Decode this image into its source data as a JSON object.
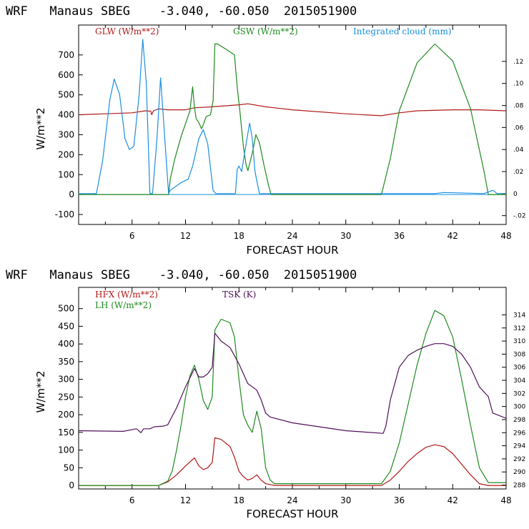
{
  "chart_data": [
    {
      "type": "line",
      "title": "WRF   Manaus SBEG    -3.040, -60.050  2015051900",
      "xlabel": "FORECAST HOUR",
      "ylabel": "W/m**2",
      "xlim": [
        0,
        48
      ],
      "ylim": [
        -150,
        850
      ],
      "xticks": [
        6,
        12,
        18,
        24,
        30,
        36,
        42,
        48
      ],
      "yticks": [
        -100,
        0,
        100,
        200,
        300,
        400,
        500,
        600,
        700
      ],
      "y2lim": [
        -0.028,
        0.153
      ],
      "y2ticks": [
        -0.02,
        0,
        0.02,
        0.04,
        0.06,
        0.08,
        0.1,
        0.12
      ],
      "y2ticklabels": [
        "-.02",
        "0",
        ".02",
        ".04",
        ".06",
        ".08",
        ".10",
        ".12"
      ],
      "series": [
        {
          "name": "GLW (W/m**2)",
          "color": "#b01818",
          "axis": "left",
          "x": [
            0,
            3,
            6,
            7.5,
            8.1,
            8.2,
            8.4,
            9,
            10,
            12,
            13,
            15,
            16.5,
            18,
            19,
            21,
            24,
            30,
            34,
            36,
            38,
            42,
            45,
            48
          ],
          "y": [
            400,
            405,
            410,
            420,
            418,
            400,
            420,
            430,
            425,
            425,
            435,
            440,
            445,
            450,
            455,
            440,
            425,
            405,
            395,
            410,
            420,
            425,
            425,
            420
          ]
        },
        {
          "name": "GSW (W/m**2)",
          "color": "#1f8a1f",
          "axis": "left",
          "x": [
            0,
            10.1,
            10.3,
            10.8,
            11.5,
            12.5,
            12.8,
            13.0,
            13.2,
            13.5,
            13.8,
            14.0,
            14.3,
            14.8,
            15.1,
            15.3,
            15.6,
            16.5,
            17.5,
            17.8,
            18.1,
            18.5,
            18.8,
            19.0,
            19.3,
            19.6,
            19.9,
            20.3,
            20.8,
            21.3,
            21.6,
            22,
            34.0,
            35,
            36,
            38,
            40,
            42,
            44,
            45.5,
            46,
            48
          ],
          "y": [
            0,
            0,
            80,
            180,
            290,
            420,
            540,
            440,
            380,
            360,
            330,
            350,
            390,
            400,
            470,
            755,
            755,
            730,
            700,
            540,
            420,
            240,
            150,
            120,
            170,
            230,
            300,
            260,
            150,
            50,
            0,
            0,
            0,
            180,
            420,
            660,
            755,
            670,
            430,
            120,
            0,
            0
          ]
        },
        {
          "name": "Integrated cloud (mm)",
          "color": "#1a8fe0",
          "axis": "right",
          "x": [
            0,
            2,
            2.7,
            3.5,
            4,
            4.6,
            5.2,
            5.7,
            6.2,
            6.8,
            7.2,
            7.6,
            8,
            8.3,
            8.8,
            9.2,
            9.5,
            9.8,
            10.1,
            10.3,
            11.5,
            12.3,
            12.8,
            13.5,
            14,
            14.5,
            15.1,
            15.4,
            17.6,
            17.8,
            18.0,
            18.3,
            18.6,
            18.9,
            19.2,
            19.5,
            19.8,
            20.1,
            20.3,
            40,
            41,
            45.5,
            46.5,
            47,
            48
          ],
          "y": [
            0,
            0,
            0.03,
            0.085,
            0.104,
            0.09,
            0.05,
            0.04,
            0.043,
            0.09,
            0.14,
            0.1,
            0,
            0,
            0.05,
            0.105,
            0.07,
            0.035,
            0,
            0.003,
            0.01,
            0.013,
            0.025,
            0.05,
            0.058,
            0.045,
            0.003,
            0,
            0,
            0.022,
            0.025,
            0.02,
            0.035,
            0.05,
            0.064,
            0.05,
            0.02,
            0.008,
            0,
            0,
            0.001,
            0,
            0.003,
            0,
            0
          ]
        }
      ]
    },
    {
      "type": "line",
      "title": "WRF   Manaus SBEG    -3.040, -60.050  2015051900",
      "xlabel": "FORECAST HOUR",
      "ylabel": "W/m**2",
      "xlim": [
        0,
        48
      ],
      "ylim": [
        -10,
        560
      ],
      "xticks": [
        6,
        12,
        18,
        24,
        30,
        36,
        42,
        48
      ],
      "yticks": [
        0,
        50,
        100,
        150,
        200,
        250,
        300,
        350,
        400,
        450,
        500
      ],
      "y2lim": [
        287.4,
        318.2
      ],
      "y2ticks": [
        288,
        290,
        292,
        294,
        296,
        298,
        300,
        302,
        304,
        306,
        308,
        310,
        312,
        314
      ],
      "y2ticklabels": [
        "288",
        "290",
        "292",
        "294",
        "296",
        "298",
        "300",
        "302",
        "304",
        "306",
        "308",
        "310",
        "312",
        "314"
      ],
      "series": [
        {
          "name": "HFX (W/m**2)",
          "color": "#b01818",
          "axis": "left",
          "x": [
            0,
            9,
            10,
            11,
            12,
            13,
            13.5,
            14,
            14.5,
            15,
            15.3,
            16,
            17,
            17.5,
            18,
            18.5,
            19,
            19.5,
            20,
            20.5,
            21,
            22,
            34,
            35,
            36,
            37,
            38,
            39,
            40,
            41,
            42,
            43,
            44,
            45,
            46,
            48
          ],
          "y": [
            0,
            0,
            10,
            30,
            55,
            78,
            55,
            45,
            50,
            65,
            135,
            130,
            110,
            80,
            40,
            25,
            15,
            20,
            30,
            15,
            5,
            0,
            0,
            15,
            40,
            68,
            90,
            108,
            115,
            110,
            90,
            60,
            30,
            5,
            0,
            0
          ]
        },
        {
          "name": "LH (W/m**2)",
          "color": "#1f8a1f",
          "axis": "left",
          "x": [
            0,
            9,
            10,
            10.5,
            11,
            11.5,
            12,
            12.5,
            13,
            13.5,
            14,
            14.5,
            15,
            15.3,
            16,
            17,
            17.5,
            18,
            18.5,
            19,
            19.5,
            20,
            20.5,
            21,
            21.5,
            22,
            34,
            35,
            36,
            37,
            38,
            39,
            40,
            41,
            42,
            43,
            44,
            45,
            46,
            48
          ],
          "y": [
            0,
            0,
            12,
            40,
            100,
            170,
            250,
            310,
            340,
            300,
            240,
            215,
            250,
            440,
            470,
            460,
            420,
            300,
            200,
            170,
            150,
            210,
            160,
            50,
            15,
            5,
            5,
            40,
            120,
            230,
            340,
            430,
            495,
            480,
            420,
            300,
            170,
            50,
            8,
            8
          ]
        },
        {
          "name": "TSK (K)",
          "color": "#50105a",
          "axis": "right",
          "x": [
            0,
            5,
            6.5,
            7,
            7.3,
            8,
            8.5,
            9.5,
            10,
            11,
            12,
            13,
            13.5,
            14,
            14.5,
            15,
            15.3,
            16,
            17,
            18,
            19,
            20,
            20.5,
            21,
            21.5,
            24,
            30,
            34.2,
            34.5,
            35,
            36,
            37,
            38,
            39,
            40,
            41,
            42,
            43,
            44,
            45,
            46,
            46.5,
            48
          ],
          "y": [
            296.3,
            296.2,
            296.6,
            296.0,
            296.6,
            296.6,
            296.9,
            297.0,
            297.2,
            299.8,
            303.0,
            305.8,
            304.5,
            304.5,
            305.0,
            306.0,
            311.2,
            310.0,
            309.0,
            306.5,
            303.5,
            302.5,
            301.0,
            299.0,
            298.4,
            297.5,
            296.3,
            295.9,
            297.0,
            301.0,
            306.0,
            307.8,
            308.6,
            309.2,
            309.6,
            309.6,
            309.2,
            308.0,
            306.0,
            303.0,
            301.5,
            299.0,
            298.2
          ]
        }
      ]
    }
  ]
}
